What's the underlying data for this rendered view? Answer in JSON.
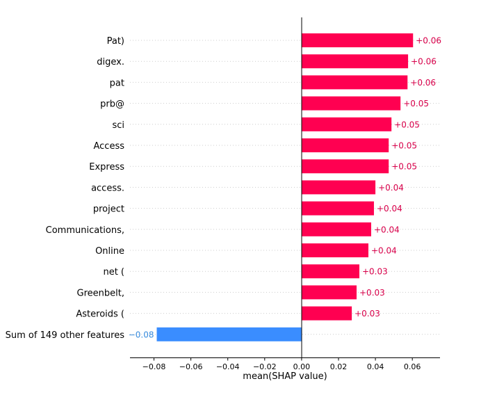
{
  "chart_data": {
    "type": "bar",
    "orientation": "horizontal",
    "title": "",
    "xlabel": "mean(SHAP value)",
    "ylabel": "",
    "xlim": [
      -0.093,
      0.075
    ],
    "xticks": [
      -0.08,
      -0.06,
      -0.04,
      -0.02,
      0.0,
      0.02,
      0.04,
      0.06
    ],
    "xtick_labels": [
      "−0.08",
      "−0.06",
      "−0.04",
      "−0.02",
      "0.00",
      "0.02",
      "0.04",
      "0.06"
    ],
    "grid": "horizontal dotted per row",
    "categories": [
      "Pat)",
      "digex.",
      "pat",
      "prb@",
      "sci",
      "Access",
      "Express",
      "access.",
      "project",
      "Communications,",
      "Online",
      "net (",
      "Greenbelt,",
      "Asteroids (",
      "Sum of 149 other features"
    ],
    "values": [
      0.0604,
      0.0577,
      0.0574,
      0.0536,
      0.0487,
      0.0472,
      0.0472,
      0.04,
      0.0392,
      0.0377,
      0.0362,
      0.0313,
      0.0298,
      0.0272,
      -0.0785
    ],
    "data_labels": [
      "+0.06",
      "+0.06",
      "+0.06",
      "+0.05",
      "+0.05",
      "+0.05",
      "+0.05",
      "+0.04",
      "+0.04",
      "+0.04",
      "+0.04",
      "+0.03",
      "+0.03",
      "+0.03",
      "−0.08"
    ],
    "colors": {
      "positive": "#ff0051",
      "negative": "#3a8dff",
      "positive_label": "#d8004a",
      "negative_label": "#3a8dde"
    }
  }
}
